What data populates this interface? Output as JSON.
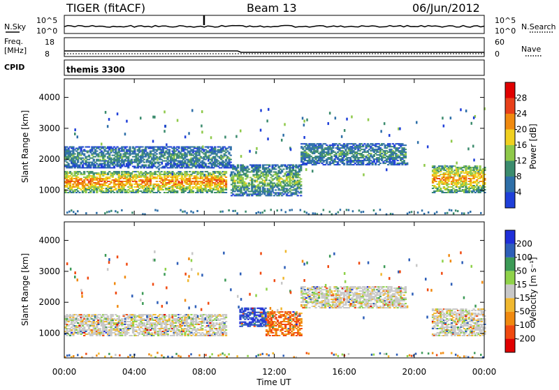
{
  "header": {
    "title": "TIGER (fitACF)",
    "beam": "Beam 13",
    "date": "06/Jun/2012"
  },
  "param_panels": {
    "nsky_label": "N.Sky",
    "nsearch_label": "N.Search",
    "nsky_ticks": [
      "10^5",
      "10^0"
    ],
    "nsearch_ticks": [
      "10^5",
      "10^0"
    ],
    "freq_label": "Freq.",
    "freq_unit": "[MHz]",
    "freq_ticks": [
      "18",
      "8"
    ],
    "nave_label": "Nave",
    "nave_ticks": [
      "60",
      "0"
    ],
    "cpid_label": "CPID",
    "cpid_value": "themis 3300"
  },
  "colors": {
    "power": [
      "#1f3fd9",
      "#2e6fa8",
      "#3c8c6e",
      "#8fc94a",
      "#f0d020",
      "#f08a10",
      "#e8401a",
      "#e00000"
    ],
    "velocity": [
      "#e00000",
      "#f04a10",
      "#f08a10",
      "#f0b830",
      "#c8c8c8",
      "#8fd24a",
      "#3c9a56",
      "#2e5fb8",
      "#1f2fd9"
    ]
  },
  "chart_data": [
    {
      "type": "heatmap",
      "name": "power",
      "ylabel": "Slant Range [km]",
      "xlabel": "Time UT",
      "x_ticks": [
        "00:00",
        "04:00",
        "08:00",
        "12:00",
        "16:00",
        "20:00",
        "00:00"
      ],
      "y_ticks": [
        1000,
        2000,
        3000,
        4000
      ],
      "ylim": [
        200,
        4600
      ],
      "xlim_hours": [
        0,
        24
      ],
      "colorbar_label": "Power [dB]",
      "colorbar_ticks": [
        4,
        8,
        12,
        16,
        20,
        24,
        28
      ],
      "colorbar_range": [
        0,
        32
      ],
      "bands": [
        {
          "t0": 0.0,
          "t1": 9.2,
          "r0": 900,
          "r1": 1600,
          "v_center": 24
        },
        {
          "t0": 0.0,
          "t1": 9.5,
          "r0": 1700,
          "r1": 2400,
          "v_center": 10
        },
        {
          "t0": 9.5,
          "t1": 13.5,
          "r0": 800,
          "r1": 1800,
          "v_center": 14
        },
        {
          "t0": 13.5,
          "t1": 19.5,
          "r0": 1800,
          "r1": 2500,
          "v_center": 10
        },
        {
          "t0": 21.0,
          "t1": 24.0,
          "r0": 900,
          "r1": 1800,
          "v_center": 22
        }
      ]
    },
    {
      "type": "heatmap",
      "name": "velocity",
      "ylabel": "Slant Range [km]",
      "xlabel": "Time UT",
      "x_ticks": [
        "00:00",
        "04:00",
        "08:00",
        "12:00",
        "16:00",
        "20:00",
        "00:00"
      ],
      "y_ticks": [
        1000,
        2000,
        3000,
        4000
      ],
      "ylim": [
        200,
        4600
      ],
      "xlim_hours": [
        0,
        24
      ],
      "colorbar_label": "Velocity [m s⁻¹]",
      "colorbar_ticks": [
        -200,
        -100,
        -50,
        -15,
        15,
        50,
        100,
        200
      ],
      "bands": [
        {
          "t0": 0.0,
          "t1": 9.2,
          "r0": 900,
          "r1": 1600,
          "v_center": 0
        },
        {
          "t0": 10.0,
          "t1": 11.5,
          "r0": 1200,
          "r1": 1800,
          "v_center": 200
        },
        {
          "t0": 11.5,
          "t1": 13.5,
          "r0": 900,
          "r1": 1700,
          "v_center": -100
        },
        {
          "t0": 13.5,
          "t1": 19.5,
          "r0": 1800,
          "r1": 2500,
          "v_center": 0
        },
        {
          "t0": 21.0,
          "t1": 24.0,
          "r0": 900,
          "r1": 1800,
          "v_center": 0
        }
      ]
    }
  ]
}
